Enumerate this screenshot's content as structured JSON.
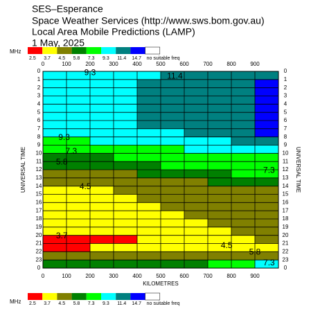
{
  "chart_data": {
    "type": "heatmap",
    "title_lines": [
      "SES–Esperance",
      "Space Weather Services (http://www.sws.bom.gov.au)",
      "Local Area Mobile Predictions (LAMP)",
      "1 May, 2025"
    ],
    "xlabel": "KILOMETRES",
    "ylabel": "UNIVERSAL TIME",
    "color_unit": "MHz",
    "levels": [
      2.5,
      3.7,
      4.5,
      5.8,
      7.3,
      9.3,
      11.4,
      14.7
    ],
    "colors": [
      "#ff0000",
      "#ffff00",
      "#808000",
      "#008000",
      "#00ff00",
      "#00ffff",
      "#008080",
      "#0000ff"
    ],
    "no_freq_label": "no suitable freq",
    "no_freq_color": "#ffffff",
    "x_bins": [
      0,
      100,
      200,
      300,
      400,
      500,
      600,
      700,
      800,
      900,
      1000
    ],
    "y_bins": [
      0,
      1,
      2,
      3,
      4,
      5,
      6,
      7,
      8,
      9,
      10,
      11,
      12,
      13,
      14,
      15,
      16,
      17,
      18,
      19,
      20,
      21,
      22,
      23,
      24
    ],
    "values": [
      [
        10,
        10,
        10,
        10,
        10,
        12,
        12,
        12,
        12,
        12
      ],
      [
        10,
        10,
        10,
        10,
        12,
        12,
        12,
        12,
        12,
        15
      ],
      [
        10,
        10,
        10,
        10,
        12,
        12,
        12,
        12,
        12,
        15
      ],
      [
        10,
        10,
        10,
        10,
        12,
        12,
        12,
        12,
        12,
        15
      ],
      [
        10,
        10,
        10,
        10,
        12,
        12,
        12,
        12,
        12,
        15
      ],
      [
        10,
        10,
        10,
        10,
        12,
        12,
        12,
        12,
        12,
        15
      ],
      [
        10,
        10,
        10,
        10,
        12,
        12,
        12,
        12,
        12,
        15
      ],
      [
        10,
        10,
        10,
        10,
        10,
        10,
        12,
        12,
        12,
        15
      ],
      [
        8,
        8,
        10,
        10,
        10,
        10,
        10,
        10,
        12,
        12
      ],
      [
        8,
        8,
        8,
        8,
        8,
        8,
        10,
        10,
        10,
        10
      ],
      [
        6.5,
        6.5,
        6.5,
        8,
        8,
        8,
        8,
        8,
        8,
        8
      ],
      [
        6.5,
        6.5,
        6.5,
        6.5,
        6.5,
        8,
        8,
        8,
        8,
        8
      ],
      [
        5,
        5,
        5,
        5,
        6.5,
        6.5,
        6.5,
        6.5,
        8,
        8
      ],
      [
        5,
        5,
        5,
        5,
        5,
        5,
        5,
        6.5,
        6.5,
        6.5
      ],
      [
        4,
        4,
        4,
        5,
        5,
        5,
        5,
        5,
        5,
        5
      ],
      [
        4,
        4,
        4,
        4,
        5,
        5,
        5,
        5,
        5,
        5
      ],
      [
        4,
        4,
        4,
        4,
        4,
        5,
        5,
        5,
        5,
        5
      ],
      [
        4,
        4,
        4,
        4,
        4,
        4,
        5,
        5,
        5,
        5
      ],
      [
        4,
        4,
        4,
        4,
        4,
        4,
        4,
        5,
        5,
        5
      ],
      [
        4,
        4,
        4,
        4,
        4,
        4,
        4,
        4,
        5,
        5
      ],
      [
        3,
        3,
        3,
        3,
        4,
        4,
        4,
        4,
        4,
        5
      ],
      [
        3,
        3,
        4,
        4,
        4,
        4,
        4,
        4,
        4,
        4
      ],
      [
        5,
        5,
        5,
        5,
        5,
        5,
        5,
        5,
        5,
        5
      ],
      [
        6.5,
        6.5,
        6.5,
        6.5,
        6.5,
        6.5,
        6.5,
        8,
        8,
        10
      ]
    ],
    "xlim": [
      0,
      1000
    ],
    "ylim": [
      0,
      24
    ],
    "y_inverted": true,
    "xticks": [
      0,
      100,
      200,
      300,
      400,
      500,
      600,
      700,
      800,
      900
    ],
    "yticks": [
      0,
      1,
      2,
      3,
      4,
      5,
      6,
      7,
      8,
      9,
      10,
      11,
      12,
      13,
      14,
      15,
      16,
      17,
      18,
      19,
      20,
      21,
      22,
      23,
      {
        "value": 24,
        "label": "0"
      }
    ],
    "grid": true,
    "annotations": [
      {
        "text": "9.3",
        "x": 200,
        "y": 0.2
      },
      {
        "text": "11.4",
        "x": 560,
        "y": 0.6
      },
      {
        "text": "9.3",
        "x": 90,
        "y": 8.1
      },
      {
        "text": "7.3",
        "x": 120,
        "y": 9.8
      },
      {
        "text": "5.8",
        "x": 80,
        "y": 11.1
      },
      {
        "text": "7.3",
        "x": 960,
        "y": 12.1
      },
      {
        "text": "4.5",
        "x": 180,
        "y": 14.1
      },
      {
        "text": "3.7",
        "x": 80,
        "y": 20.1
      },
      {
        "text": "4.5",
        "x": 780,
        "y": 21.3
      },
      {
        "text": "5.8",
        "x": 900,
        "y": 22.1
      },
      {
        "text": "7.3",
        "x": 960,
        "y": 23.4
      }
    ]
  }
}
